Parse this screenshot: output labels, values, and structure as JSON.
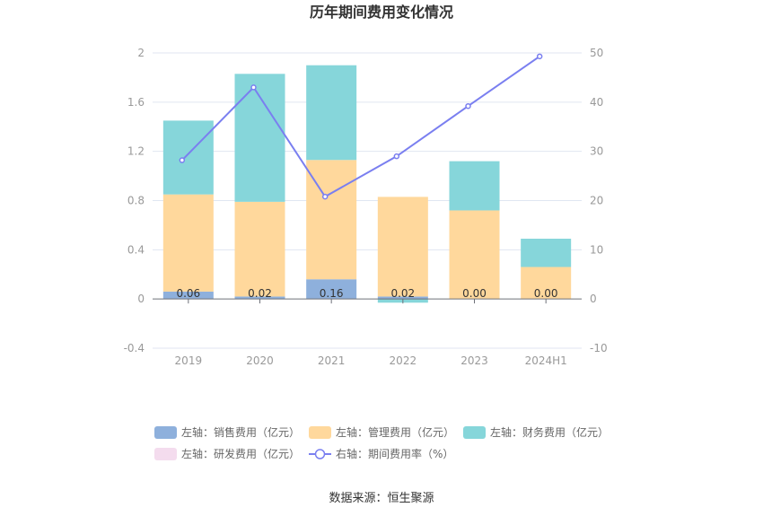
{
  "chart_data": {
    "type": "bar",
    "title": "历年期间费用变化情况",
    "categories": [
      "2019",
      "2020",
      "2021",
      "2022",
      "2023",
      "2024H1"
    ],
    "left_axis": {
      "ticks": [
        "2",
        "1.6",
        "1.2",
        "0.8",
        "0.4",
        "0",
        "-0.4"
      ],
      "ylim": [
        -0.4,
        2
      ]
    },
    "right_axis": {
      "ticks": [
        "50",
        "40",
        "30",
        "20",
        "10",
        "0",
        "-10"
      ],
      "ylim": [
        -10,
        50
      ]
    },
    "series": [
      {
        "name": "左轴：销售费用（亿元）",
        "type": "bar",
        "color": "#8eb0dc",
        "values": [
          0.06,
          0.02,
          0.16,
          0.02,
          0.0,
          0.0
        ],
        "labels": [
          "0.06",
          "0.02",
          "0.16",
          "0.02",
          "0.00",
          "0.00"
        ]
      },
      {
        "name": "左轴：管理费用（亿元）",
        "type": "bar",
        "color": "#ffd89c",
        "values": [
          0.79,
          0.77,
          0.97,
          0.81,
          0.72,
          0.26
        ]
      },
      {
        "name": "左轴：财务费用（亿元）",
        "type": "bar",
        "color": "#86d6da",
        "values": [
          0.6,
          1.04,
          0.77,
          -0.03,
          0.4,
          0.23
        ]
      },
      {
        "name": "左轴：研发费用（亿元）",
        "type": "bar",
        "color": "#f4dcee",
        "values": [
          0,
          0,
          0,
          0,
          0,
          0
        ]
      },
      {
        "name": "右轴：期间费用率（%）",
        "type": "line",
        "color": "#7a7ff0",
        "values": [
          28.2,
          43.0,
          20.8,
          29.0,
          39.2,
          49.3
        ]
      }
    ],
    "source": "数据来源：恒生聚源"
  }
}
